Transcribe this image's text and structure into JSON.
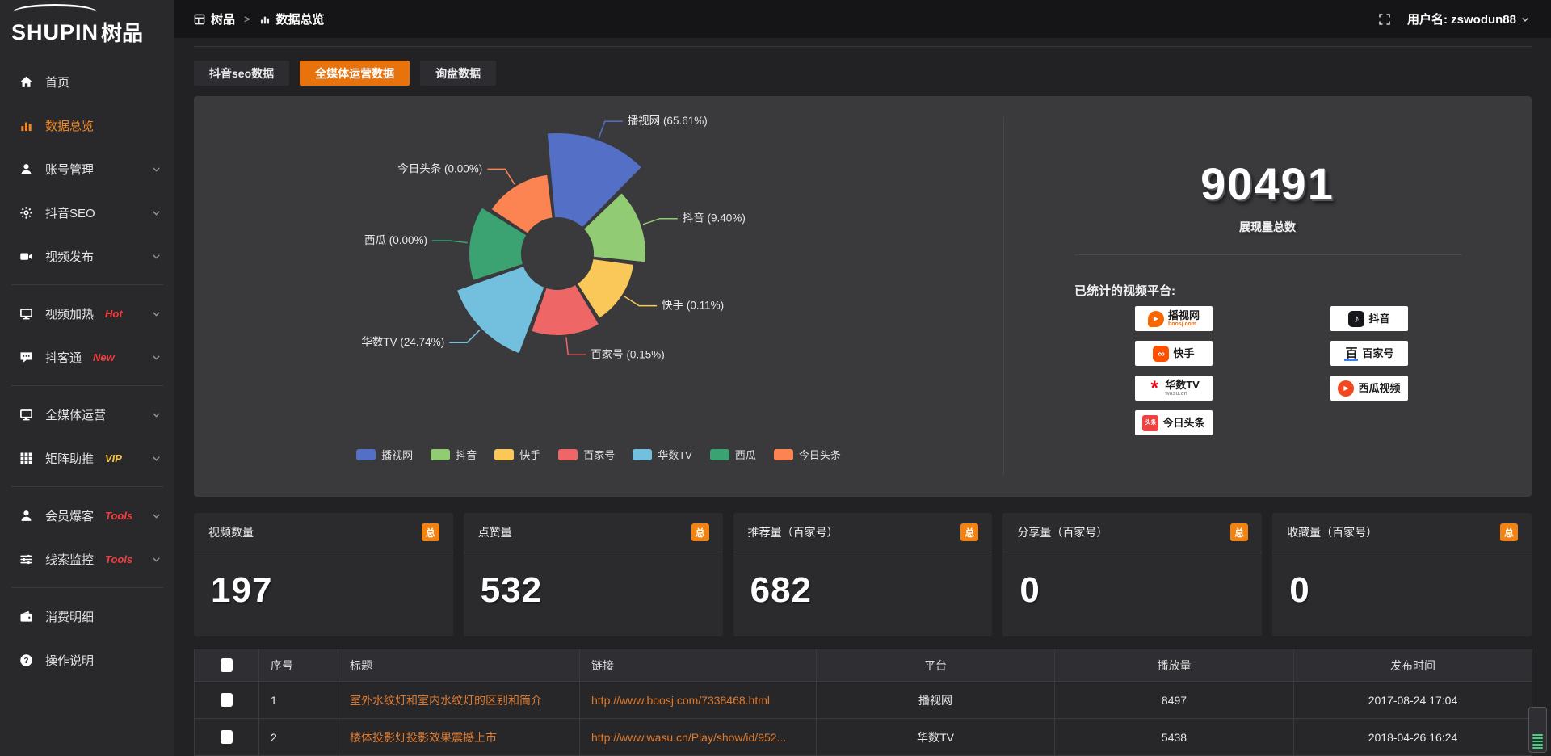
{
  "topbar": {
    "breadcrumb": {
      "app": "树品",
      "separator": ">",
      "page": "数据总览"
    },
    "user": {
      "label": "用户名: zswodun88"
    }
  },
  "sidebar": {
    "logo": {
      "text_en": "SHUPIN",
      "text_cn": "树品"
    },
    "items": [
      {
        "id": "home",
        "icon": "home-icon",
        "label": "首页"
      },
      {
        "id": "data-overview",
        "icon": "bar-chart-icon",
        "label": "数据总览",
        "active": true
      },
      {
        "id": "account-manage",
        "icon": "user-icon",
        "label": "账号管理",
        "chevron": true
      },
      {
        "id": "douyin-seo",
        "icon": "gear-icon",
        "label": "抖音SEO",
        "chevron": true
      },
      {
        "id": "video-publish",
        "icon": "video-icon",
        "label": "视频发布",
        "chevron": true
      },
      {
        "type": "divider"
      },
      {
        "id": "video-heat",
        "icon": "monitor-icon",
        "label": "视频加热",
        "tag": "Hot",
        "tag_color": "#f23d3d",
        "chevron": true
      },
      {
        "id": "douketong",
        "icon": "chat-icon",
        "label": "抖客通",
        "tag": "New",
        "tag_color": "#f23d3d",
        "chevron": true
      },
      {
        "type": "divider"
      },
      {
        "id": "media-operation",
        "icon": "monitor-icon",
        "label": "全媒体运营",
        "chevron": true
      },
      {
        "id": "matrix-boost",
        "icon": "grid-icon",
        "label": "矩阵助推",
        "tag": "VIP",
        "tag_color": "#f5c542",
        "chevron": true
      },
      {
        "type": "divider"
      },
      {
        "id": "member-baoke",
        "icon": "user-icon",
        "label": "会员爆客",
        "tag": "Tools",
        "tag_color": "#f23d3d",
        "chevron": true
      },
      {
        "id": "clue-monitor",
        "icon": "sliders-icon",
        "label": "线索监控",
        "tag": "Tools",
        "tag_color": "#f23d3d",
        "chevron": true
      },
      {
        "type": "divider"
      },
      {
        "id": "consumption-detail",
        "icon": "wallet-icon",
        "label": "消费明细"
      },
      {
        "id": "instructions",
        "icon": "question-icon",
        "label": "操作说明"
      }
    ]
  },
  "tabs": [
    {
      "label": "抖音seo数据",
      "active": false
    },
    {
      "label": "全媒体运营数据",
      "active": true
    },
    {
      "label": "询盘数据",
      "active": false
    }
  ],
  "chart_data": {
    "type": "pie",
    "subtype": "nightingale-rose",
    "slices": [
      {
        "name": "播视网",
        "percent": 65.61,
        "label": "播视网 (65.61%)",
        "color": "#5470c6",
        "radius": 150
      },
      {
        "name": "抖音",
        "percent": 9.4,
        "label": "抖音 (9.40%)",
        "color": "#91cc75",
        "radius": 110
      },
      {
        "name": "快手",
        "percent": 0.11,
        "label": "快手 (0.11%)",
        "color": "#fac858",
        "radius": 96
      },
      {
        "name": "百家号",
        "percent": 0.15,
        "label": "百家号 (0.15%)",
        "color": "#ee6666",
        "radius": 102
      },
      {
        "name": "华数TV",
        "percent": 24.74,
        "label": "华数TV (24.74%)",
        "color": "#73c0de",
        "radius": 133
      },
      {
        "name": "西瓜",
        "percent": 0.0,
        "label": "西瓜 (0.00%)",
        "color": "#3ba272",
        "radius": 110
      },
      {
        "name": "今日头条",
        "percent": 0.0,
        "label": "今日头条 (0.00%)",
        "color": "#fc8452",
        "radius": 99
      }
    ],
    "inner_radius": 44,
    "start_angle_deg": -6,
    "legend": [
      "播视网",
      "抖音",
      "快手",
      "百家号",
      "华数TV",
      "西瓜",
      "今日头条"
    ],
    "legend_position": "bottom"
  },
  "summary": {
    "total_value": "90491",
    "total_label": "展现量总数",
    "platforms_title": "已统计的视频平台:",
    "platforms_left": [
      {
        "id": "boosj",
        "name": "播视网",
        "sub": "boosj.com"
      },
      {
        "id": "kuaishou",
        "name": "快手"
      },
      {
        "id": "wasu",
        "name": "华数TV",
        "sub": "wasu.cn"
      },
      {
        "id": "toutiao",
        "name": "今日头条",
        "icon_text": "头条"
      }
    ],
    "platforms_right": [
      {
        "id": "douyin",
        "name": "抖音"
      },
      {
        "id": "baijiahao",
        "name": "百家号",
        "icon_text": "百"
      },
      {
        "id": "xigua",
        "name": "西瓜视频"
      }
    ]
  },
  "stat_cards": [
    {
      "label": "视频数量",
      "badge": "总",
      "value": "197"
    },
    {
      "label": "点赞量",
      "badge": "总",
      "value": "532"
    },
    {
      "label": "推荐量（百家号）",
      "badge": "总",
      "value": "682"
    },
    {
      "label": "分享量（百家号）",
      "badge": "总",
      "value": "0"
    },
    {
      "label": "收藏量（百家号）",
      "badge": "总",
      "value": "0"
    }
  ],
  "table": {
    "headers": [
      "序号",
      "标题",
      "链接",
      "平台",
      "播放量",
      "发布时间"
    ],
    "rows": [
      {
        "num": "1",
        "title": "室外水纹灯和室内水纹灯的区别和简介",
        "link": "http://www.boosj.com/7338468.html",
        "platform": "播视网",
        "plays": "8497",
        "time": "2017-08-24 17:04"
      },
      {
        "num": "2",
        "title": "楼体投影灯投影效果震撼上市",
        "link": "http://www.wasu.cn/Play/show/id/952...",
        "platform": "华数TV",
        "plays": "5438",
        "time": "2018-04-26 16:24"
      }
    ]
  },
  "colors": {
    "accent_orange": "#e8730d",
    "badge_orange": "#f28312",
    "link_orange": "#dd7a2f",
    "sidebar_active": "#f6871f",
    "tag_red": "#f23d3d",
    "tag_yellow": "#f5c542"
  }
}
